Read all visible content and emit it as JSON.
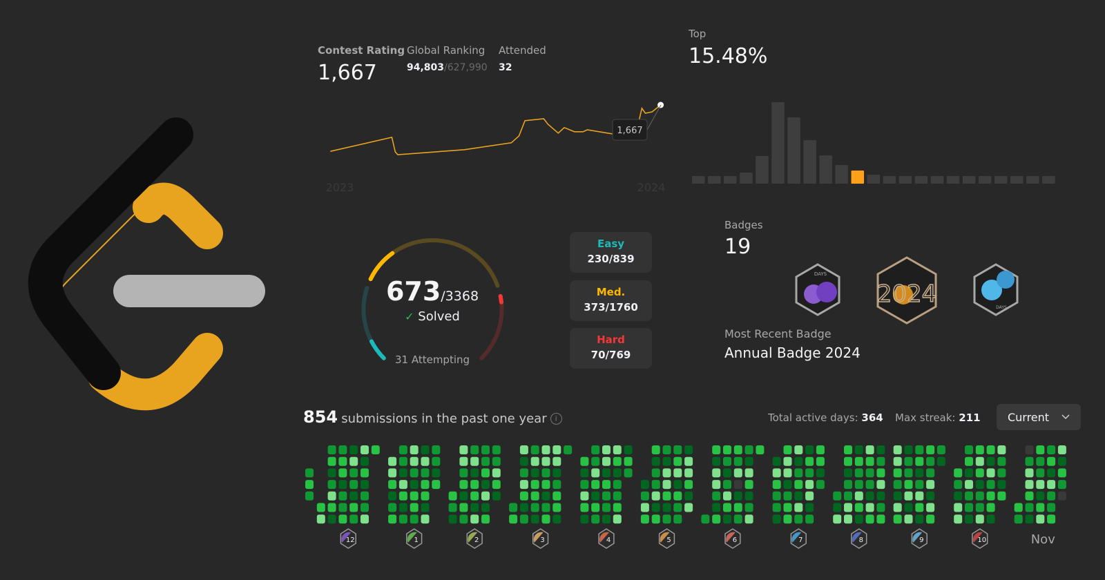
{
  "contest": {
    "rating_label": "Contest Rating",
    "rating_value": "1,667",
    "ranking_label": "Global Ranking",
    "ranking_value": "94,803",
    "ranking_total": "/627,990",
    "attended_label": "Attended",
    "attended_value": "32",
    "tooltip_value": "1,667",
    "year_start_label": "2023",
    "year_end_label": "2024",
    "line_color": "#e8a41f",
    "rating_history": [
      {
        "date": "2022-12-21",
        "rating": 1499
      },
      {
        "date": "2023-03-03",
        "rating": 1550
      },
      {
        "date": "2023-03-07",
        "rating": 1497
      },
      {
        "date": "2023-03-10",
        "rating": 1487
      },
      {
        "date": "2023-05-27",
        "rating": 1505
      },
      {
        "date": "2023-07-21",
        "rating": 1530
      },
      {
        "date": "2023-07-30",
        "rating": 1555
      },
      {
        "date": "2023-08-06",
        "rating": 1610
      },
      {
        "date": "2023-08-28",
        "rating": 1617
      },
      {
        "date": "2023-09-02",
        "rating": 1597
      },
      {
        "date": "2023-09-14",
        "rating": 1565
      },
      {
        "date": "2023-09-21",
        "rating": 1585
      },
      {
        "date": "2023-10-03",
        "rating": 1570
      },
      {
        "date": "2023-10-13",
        "rating": 1570
      },
      {
        "date": "2023-10-18",
        "rating": 1577
      },
      {
        "date": "2023-11-17",
        "rating": 1562
      },
      {
        "date": "2023-12-18",
        "rating": 1615
      },
      {
        "date": "2023-12-21",
        "rating": 1655
      },
      {
        "date": "2023-12-25",
        "rating": 1637
      },
      {
        "date": "2024-01-02",
        "rating": 1642
      },
      {
        "date": "2024-01-12",
        "rating": 1667
      }
    ]
  },
  "top": {
    "label": "Top",
    "value": "15.48%",
    "distribution": [
      11,
      11,
      11,
      16,
      40,
      118,
      96,
      63,
      41,
      27,
      19,
      13,
      11,
      11,
      11,
      11,
      11,
      11,
      11,
      11,
      11,
      11,
      11
    ],
    "highlight_index": 10,
    "bar_color": "#3e3e3e",
    "highlight_color": "#ffa116"
  },
  "solved": {
    "count": "673",
    "total": "/3368",
    "solved_label": "Solved",
    "attempting": "31 Attempting",
    "difficulties": [
      {
        "label": "Easy",
        "value": "230/839",
        "solved": 230,
        "total": 839,
        "color": "#1cbaba",
        "track": "#274545"
      },
      {
        "label": "Med.",
        "value": "373/1760",
        "solved": 373,
        "total": 1760,
        "color": "#ffb700",
        "track": "#5a4a20"
      },
      {
        "label": "Hard",
        "value": "70/769",
        "solved": 70,
        "total": 769,
        "color": "#f63737",
        "track": "#552a2a"
      }
    ]
  },
  "badges": {
    "label": "Badges",
    "count": "19",
    "items": [
      {
        "name": "200 Days Badge",
        "text": "DAYS",
        "color": "#8048c8"
      },
      {
        "name": "Annual Badge 2024",
        "text": "2024",
        "color": "#d48a1c"
      },
      {
        "name": "100 Days Badge",
        "text": "DAYS",
        "color": "#48a8e0"
      }
    ],
    "recent_label": "Most Recent Badge",
    "recent_value": "Annual Badge 2024"
  },
  "submissions": {
    "count": "854",
    "label": "submissions in the past one year",
    "active_days_label": "Total active days:",
    "active_days": "364",
    "max_streak_label": "Max streak:",
    "max_streak": "211",
    "period_select": "Current",
    "level_colors": [
      "#393939",
      "#016620",
      "#109932",
      "#28c244",
      "#7fe18b"
    ],
    "months": [
      {
        "start": "2023-11-28",
        "levels": "232"
      },
      {
        "start": "2023-12-01",
        "levels": "3423124312331223142213241312243",
        "badge": "12",
        "badge_color": "#8a5cd0"
      },
      {
        "start": "2024-01-01",
        "levels": "4431232214312442133214233142213",
        "badge": "1",
        "badge_color": "#6bbf5a"
      },
      {
        "start": "2024-02-01",
        "levels": "32144231322413314223141322431",
        "badge": "2",
        "badge_color": "#a8c060"
      },
      {
        "start": "2024-03-01",
        "levels": "2341243122413321442312344123312",
        "badge": "3",
        "badge_color": "#e0b070"
      },
      {
        "start": "2024-04-01",
        "levels": "312431224313244132214312234132",
        "badge": "4",
        "badge_color": "#e07050"
      },
      {
        "start": "2024-05-01",
        "levels": "1243312241321443122341322144314",
        "badge": "5",
        "badge_color": "#e0a050"
      },
      {
        "start": "2024-06-01",
        "levels": "231442133212431324013221431243",
        "badge": "6",
        "badge_color": "#e07060"
      },
      {
        "start": "2024-07-01",
        "levels": "1432213441233412314213244123312",
        "badge": "7",
        "badge_color": "#4aa8e0"
      },
      {
        "start": "2024-08-01",
        "levels": "2143312244132243143221431234123",
        "badge": "8",
        "badge_color": "#5a78d0"
      },
      {
        "start": "2024-09-01",
        "levels": "443214312234142312431322414321",
        "badge": "9",
        "badge_color": "#6ab8e0"
      },
      {
        "start": "2024-10-01",
        "levels": "3214423142213431224314233142213",
        "badge": "10",
        "badge_color": "#d04848"
      },
      {
        "start": "2024-11-01",
        "levels": "3202443213224134231422341320",
        "label": "Nov"
      }
    ]
  }
}
